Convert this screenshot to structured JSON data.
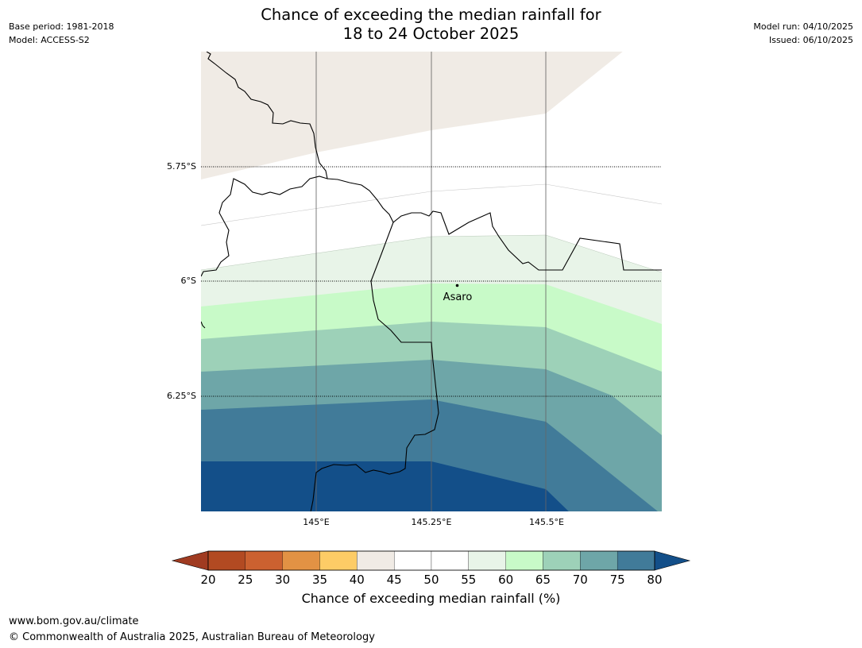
{
  "header": {
    "title_line1": "Chance of exceeding the median rainfall for",
    "title_line2": "18 to 24 October 2025",
    "base_period": "Base period: 1981-2018",
    "model": "Model: ACCESS-S2",
    "model_run": "Model run: 04/10/2025",
    "issued": "Issued: 06/10/2025"
  },
  "map": {
    "lat_labels": [
      "5.75°S",
      "6°S",
      "6.25°S"
    ],
    "lon_labels": [
      "145°E",
      "145.25°E",
      "145.5°E"
    ],
    "place": "Asaro",
    "colors": {
      "c40_45": "#f0ebe5",
      "c55_60": "#e8f4e8",
      "c60_65": "#c8fac8",
      "c65_70": "#9dd1b8",
      "c70_75": "#6ea6a8",
      "c75_80": "#417b99",
      "c80_plus": "#134f89"
    }
  },
  "colorbar": {
    "ticks": [
      "20",
      "25",
      "30",
      "35",
      "40",
      "45",
      "50",
      "55",
      "60",
      "65",
      "70",
      "75",
      "80"
    ],
    "colors": [
      "#a03b21",
      "#b24a22",
      "#cb6130",
      "#e29244",
      "#fdcc66",
      "#f0ebe5",
      "#ffffff",
      "#ffffff",
      "#e8f4e8",
      "#c8fac8",
      "#9dd1b8",
      "#6ea6a8",
      "#417b99",
      "#134f89"
    ],
    "label": "Chance of exceeding median rainfall (%)"
  },
  "footer": {
    "url": "www.bom.gov.au/climate",
    "copyright": "© Commonwealth of Australia 2025, Australian Bureau of Meteorology"
  }
}
